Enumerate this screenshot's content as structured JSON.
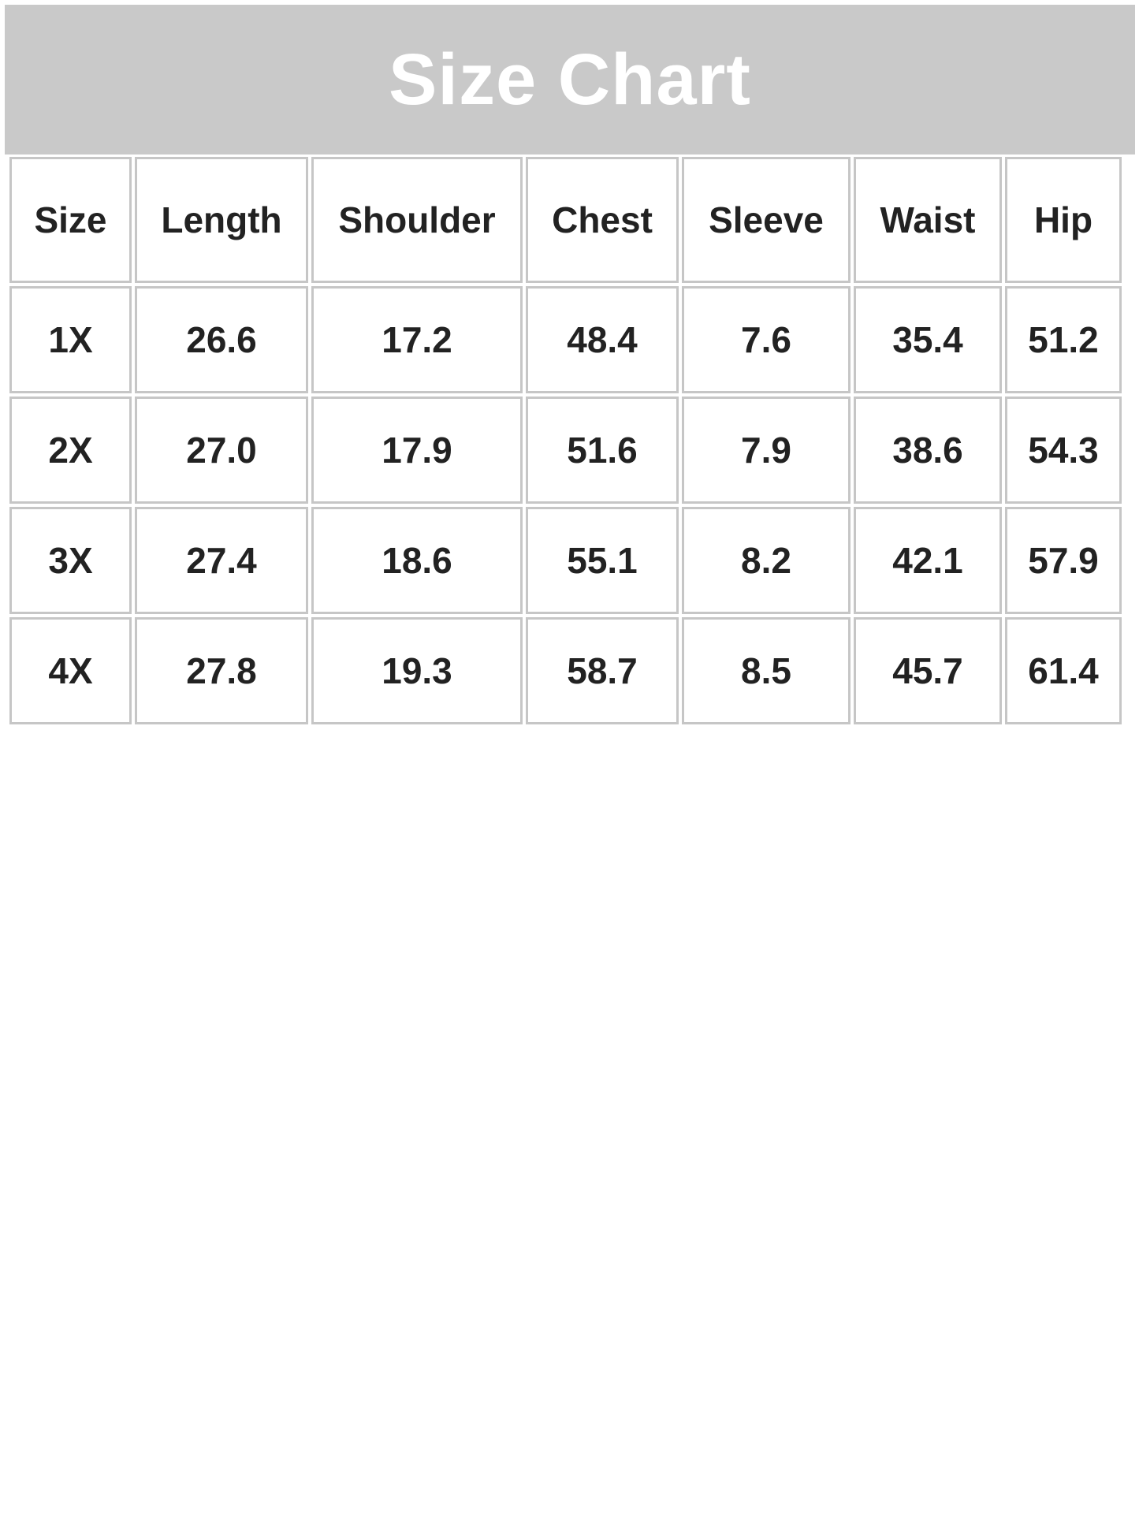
{
  "title": "Size Chart",
  "columns": [
    "Size",
    "Length",
    "Shoulder",
    "Chest",
    "Sleeve",
    "Waist",
    "Hip"
  ],
  "rows": [
    [
      "1X",
      "26.6",
      "17.2",
      "48.4",
      "7.6",
      "35.4",
      "51.2"
    ],
    [
      "2X",
      "27.0",
      "17.9",
      "51.6",
      "7.9",
      "38.6",
      "54.3"
    ],
    [
      "3X",
      "27.4",
      "18.6",
      "55.1",
      "8.2",
      "42.1",
      "57.9"
    ],
    [
      "4X",
      "27.8",
      "19.3",
      "58.7",
      "8.5",
      "45.7",
      "61.4"
    ]
  ],
  "colors": {
    "banner": "#c9c9c9",
    "border": "#c6c6c6",
    "text": "#222222"
  }
}
